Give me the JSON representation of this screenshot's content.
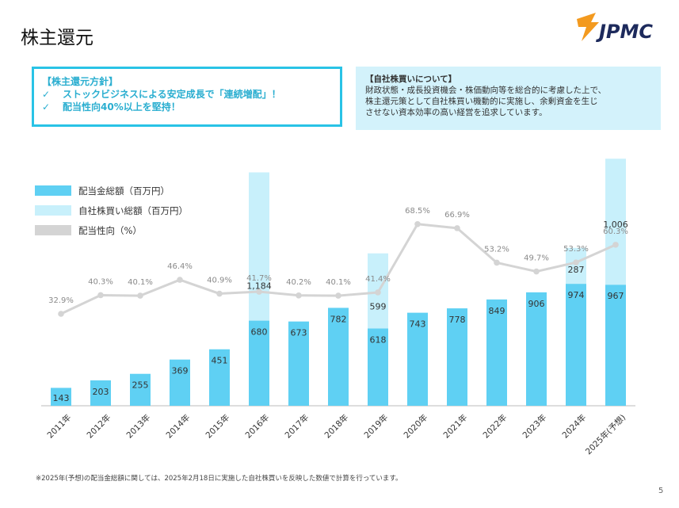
{
  "page": {
    "title": "株主還元",
    "page_number": "5",
    "logo_text": "JPMC"
  },
  "policy_box": {
    "heading": "【株主還元方針】",
    "items": [
      {
        "check": "✓",
        "text": "ストックビジネスによる安定成長で「連続増配」！"
      },
      {
        "check": "✓",
        "text": "配当性向40%以上を堅持！"
      }
    ]
  },
  "buyback_box": {
    "heading": "【自社株買いについて】",
    "lines": [
      "財政状態・成長投資機会・株価動向等を総合的に考慮した上で、",
      "株主還元策として自社株買い機動的に実施し、余剰資金を生じ",
      "させない資本効率の高い経営を追求しています。"
    ]
  },
  "footnote": "※2025年(予想)の配当金総額に関しては、2025年2月18日に実施した自社株買いを反映した数値で計算を行っています。",
  "colors": {
    "dividend": "#5fd0f3",
    "buyback": "#c8f0fb",
    "payout": "#d4d4d4",
    "accent": "#29c3e6",
    "logo_orange": "#f39a1f",
    "logo_navy": "#1d2a5c"
  },
  "chart_data": {
    "type": "bar",
    "categories": [
      "2011年",
      "2012年",
      "2013年",
      "2014年",
      "2015年",
      "2016年",
      "2017年",
      "2018年",
      "2019年",
      "2020年",
      "2021年",
      "2022年",
      "2023年",
      "2024年",
      "2025年(予想)"
    ],
    "series": [
      {
        "name": "配当金総額（百万円）",
        "kind": "bar",
        "values": [
          143,
          203,
          255,
          369,
          451,
          680,
          673,
          782,
          618,
          743,
          778,
          849,
          906,
          974,
          967
        ]
      },
      {
        "name": "自社株買い総額（百万円）",
        "kind": "stacked-bar",
        "values": [
          null,
          null,
          null,
          null,
          null,
          1184,
          null,
          null,
          599,
          null,
          null,
          null,
          null,
          287,
          1006
        ]
      },
      {
        "name": "配当性向（%）",
        "kind": "line",
        "values": [
          32.9,
          40.3,
          40.1,
          46.4,
          40.9,
          41.7,
          40.2,
          40.1,
          41.4,
          68.5,
          66.9,
          53.2,
          49.7,
          53.3,
          60.3
        ]
      }
    ],
    "payout_labels": [
      "32.9%",
      "40.3%",
      "40.1%",
      "46.4%",
      "40.9%",
      "41.7%",
      "40.2%",
      "40.1%",
      "41.4%",
      "68.5%",
      "66.9%",
      "53.2%",
      "49.7%",
      "53.3%",
      "60.3%"
    ],
    "buyback_labels": [
      "",
      "",
      "",
      "",
      "",
      "1,184",
      "",
      "",
      "599",
      "",
      "",
      "",
      "",
      "287",
      "1,006"
    ],
    "legend_position": "top-left",
    "grid": false
  }
}
